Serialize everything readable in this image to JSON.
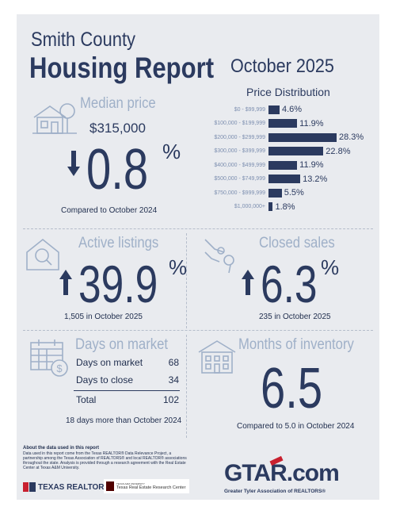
{
  "header": {
    "county": "Smith County",
    "report": "Housing Report",
    "month": "October 2025"
  },
  "price_distribution": {
    "title": "Price Distribution",
    "rows": [
      {
        "label": "$0 - $99,999",
        "value": "4.6%",
        "pct": 4.6
      },
      {
        "label": "$100,000 - $199,999",
        "value": "11.9%",
        "pct": 11.9
      },
      {
        "label": "$200,000 - $299,999",
        "value": "28.3%",
        "pct": 28.3
      },
      {
        "label": "$300,000 - $399,999",
        "value": "22.8%",
        "pct": 22.8
      },
      {
        "label": "$400,000 - $499,999",
        "value": "11.9%",
        "pct": 11.9
      },
      {
        "label": "$500,000 - $749,999",
        "value": "13.2%",
        "pct": 13.2
      },
      {
        "label": "$750,000 - $999,999",
        "value": "5.5%",
        "pct": 5.5
      },
      {
        "label": "$1,000,000+",
        "value": "1.8%",
        "pct": 1.8
      }
    ]
  },
  "median_price": {
    "title": "Median price",
    "value": "$315,000",
    "change": "0.8",
    "percent_sign": "%",
    "direction_icon": "down-arrow-icon",
    "caption": "Compared to October 2024"
  },
  "active_listings": {
    "title": "Active listings",
    "change": "39.9",
    "percent_sign": "%",
    "direction_icon": "up-arrow-icon",
    "caption": "1,505 in October 2025"
  },
  "closed_sales": {
    "title": "Closed sales",
    "change": "6.3",
    "percent_sign": "%",
    "direction_icon": "up-arrow-icon",
    "caption": "235 in October 2025"
  },
  "days_on_market": {
    "title": "Days on market",
    "rows": [
      {
        "label": "Days on market",
        "value": "68"
      },
      {
        "label": "Days to close",
        "value": "34"
      }
    ],
    "total_label": "Total",
    "total_value": "102",
    "caption": "18 days more than October 2024"
  },
  "months_inventory": {
    "title": "Months of inventory",
    "value": "6.5",
    "caption": "Compared to 5.0 in October 2024"
  },
  "footer": {
    "about_title": "About the data used in this report",
    "about_text": "Data used in this report come from the Texas REALTOR® Data Relevance Project, a partnership among the Texas Association of REALTORS® and local REALTOR® associations throughout the state. Analysis is provided through a research agreement with the Real Estate Center at Texas A&M University.",
    "texas_realtors": "TEXAS REALTORS",
    "tamu_small": "TEXAS A&M UNIVERSITY",
    "research_center": "Texas Real Estate Research Center",
    "gtar_logo": "GTAR.com",
    "gtar_tagline": "Greater Tyler Association of REALTORS®"
  },
  "colors": {
    "navy": "#2b3a5f",
    "light_blue": "#9fb0c8",
    "background": "#e9ebef",
    "red": "#c8202f"
  }
}
